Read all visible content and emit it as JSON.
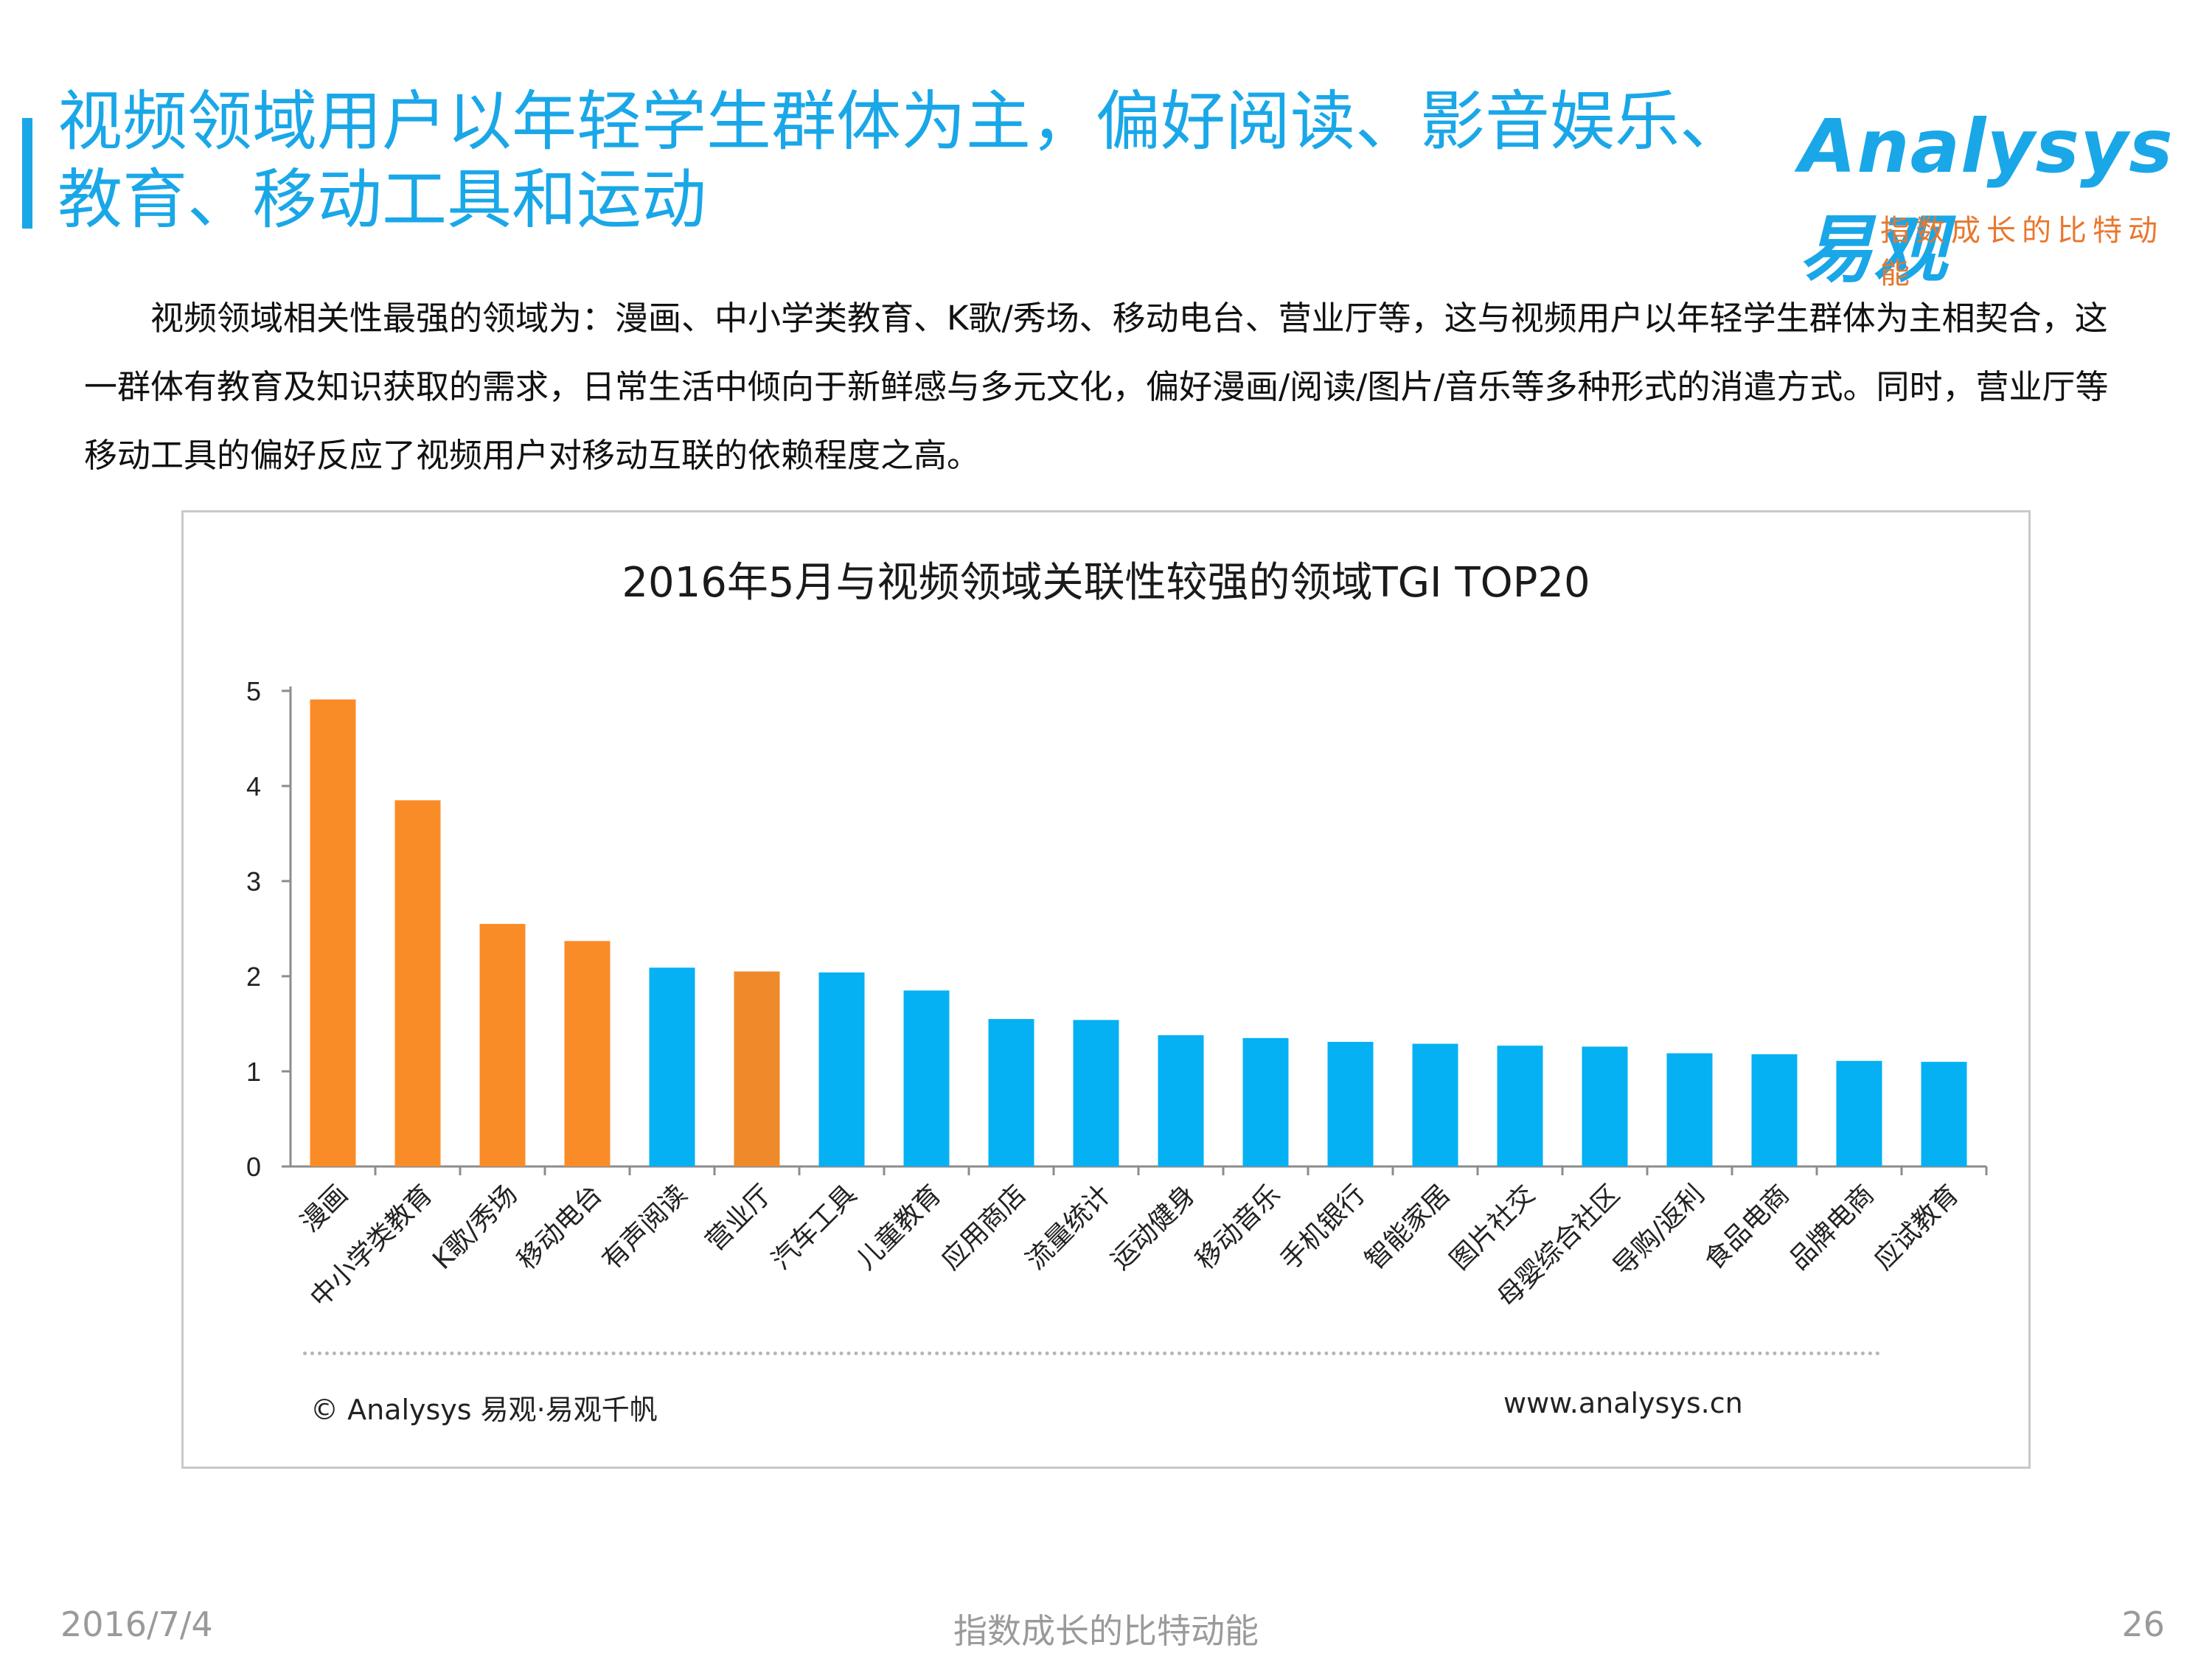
{
  "slide": {
    "title": "视频领域用户以年轻学生群体为主，偏好阅读、影音娱乐、教育、移动工具和运动",
    "description": "视频领域相关性最强的领域为：漫画、中小学类教育、K歌/秀场、移动电台、营业厅等，这与视频用户以年轻学生群体为主相契合，这一群体有教育及知识获取的需求，日常生活中倾向于新鲜感与多元文化，偏好漫画/阅读/图片/音乐等多种形式的消遣方式。同时，营业厅等移动工具的偏好反应了视频用户对移动互联的依赖程度之高。"
  },
  "logo": {
    "brand": "Analysys 易观",
    "slogan": "指数成长的比特动能"
  },
  "chart_data": {
    "type": "bar",
    "title": "2016年5月与视频领域关联性较强的领域TGI TOP20",
    "xlabel": "",
    "ylabel": "",
    "ylim": [
      0,
      5
    ],
    "yticks": [
      0,
      1,
      2,
      3,
      4,
      5
    ],
    "grid": false,
    "categories": [
      "漫画",
      "中小学类教育",
      "K歌/秀场",
      "移动电台",
      "有声阅读",
      "营业厅",
      "汽车工具",
      "儿童教育",
      "应用商店",
      "流量统计",
      "运动健身",
      "移动音乐",
      "手机银行",
      "智能家居",
      "图片社交",
      "母婴综合社区",
      "导购/返利",
      "食品电商",
      "品牌电商",
      "应试教育"
    ],
    "values": [
      4.91,
      3.85,
      2.55,
      2.37,
      2.09,
      2.05,
      2.04,
      1.85,
      1.55,
      1.54,
      1.38,
      1.35,
      1.31,
      1.29,
      1.27,
      1.26,
      1.19,
      1.18,
      1.11,
      1.1
    ],
    "colors": [
      "#fa8c28",
      "#fa8c28",
      "#fa8c28",
      "#fa8c28",
      "#05b1f3",
      "#ee8a2a",
      "#05b1f3",
      "#05b1f3",
      "#05b1f3",
      "#05b1f3",
      "#05b1f3",
      "#05b1f3",
      "#05b1f3",
      "#05b1f3",
      "#05b1f3",
      "#05b1f3",
      "#05b1f3",
      "#05b1f3",
      "#05b1f3",
      "#05b1f3"
    ]
  },
  "chart_footer": {
    "copyright": "© Analysys 易观·易观千帆",
    "website": "www.analysys.cn"
  },
  "footer": {
    "date": "2016/7/4",
    "slogan": "指数成长的比特动能",
    "page": "26"
  }
}
